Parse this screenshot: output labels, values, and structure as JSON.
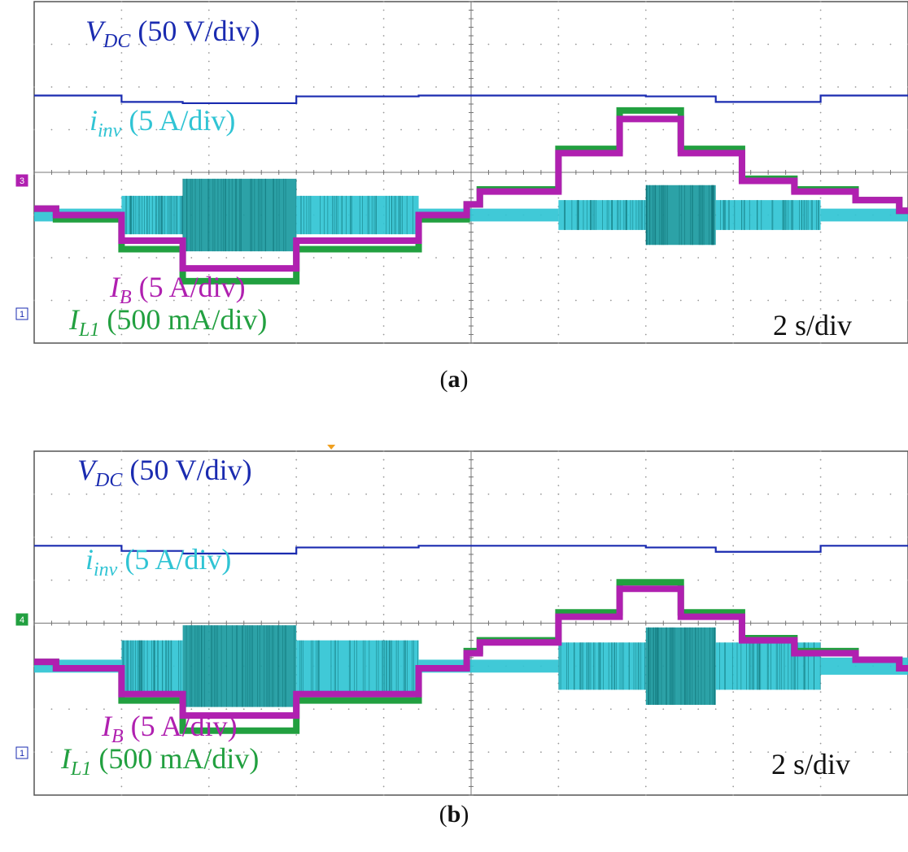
{
  "chart_data": [
    {
      "type": "line",
      "panel_label": "a",
      "time_scale": "2 s/div",
      "x_divisions": 10,
      "y_divisions": 8,
      "channel_markers": [
        "3",
        "1"
      ],
      "step_times_div": [
        0,
        0.2,
        1.0,
        1.7,
        3.0,
        4.4,
        5.0,
        6.0,
        7.0,
        7.8,
        9.0,
        10.0
      ],
      "series": [
        {
          "name": "V_DC",
          "label_main": "V",
          "label_sub": "DC",
          "label_scale": "(50 V/div)",
          "color": "#1a2bb0",
          "levels_div": [
            5.8,
            5.8,
            5.65,
            5.62,
            5.78,
            5.8,
            5.8,
            5.8,
            5.78,
            5.65,
            5.8,
            5.8
          ]
        },
        {
          "name": "i_inv",
          "label_main": "i",
          "label_sub": "inv",
          "label_scale": "(5 A/div)",
          "color": "#30c4d4",
          "amps_div": [
            0.15,
            0.15,
            0.45,
            0.85,
            0.45,
            0.15,
            0.15,
            0.35,
            0.7,
            0.35,
            0.15,
            0.15
          ]
        },
        {
          "name": "I_B",
          "label_main": "I",
          "label_sub": "B",
          "label_scale": "(5 A/div)",
          "color": "#b020b0",
          "levels_div": [
            3.15,
            3.0,
            2.4,
            1.75,
            2.4,
            3.0,
            3.25,
            3.55,
            4.45,
            5.25,
            4.45,
            3.8,
            3.55,
            3.35,
            3.1
          ]
        },
        {
          "name": "I_L1",
          "label_main": "I",
          "label_sub": "L1",
          "label_scale": "(500 mA/div)",
          "color": "#22a040",
          "levels_div": [
            3.15,
            2.9,
            2.2,
            1.45,
            2.2,
            2.9,
            3.25,
            3.6,
            4.55,
            5.45,
            4.55,
            3.85,
            3.6,
            3.35,
            3.1
          ]
        }
      ]
    },
    {
      "type": "line",
      "panel_label": "b",
      "time_scale": "2 s/div",
      "x_divisions": 10,
      "y_divisions": 8,
      "channel_markers": [
        "4",
        "1"
      ],
      "step_times_div": [
        0,
        0.2,
        1.0,
        1.7,
        3.0,
        4.4,
        5.0,
        6.0,
        7.0,
        7.8,
        9.0,
        10.0
      ],
      "series": [
        {
          "name": "V_DC",
          "label_main": "V",
          "label_sub": "DC",
          "label_scale": "(50 V/div)",
          "color": "#1a2bb0",
          "levels_div": [
            5.8,
            5.8,
            5.68,
            5.62,
            5.76,
            5.8,
            5.8,
            5.8,
            5.76,
            5.66,
            5.8,
            5.8
          ]
        },
        {
          "name": "i_inv",
          "label_main": "i",
          "label_sub": "inv",
          "label_scale": "(5 A/div)",
          "color": "#30c4d4",
          "amps_div": [
            0.15,
            0.15,
            0.6,
            0.95,
            0.6,
            0.15,
            0.15,
            0.55,
            0.9,
            0.55,
            0.2,
            0.15
          ]
        },
        {
          "name": "I_B",
          "label_main": "I",
          "label_sub": "B",
          "label_scale": "(5 A/div)",
          "color": "#b020b0",
          "levels_div": [
            3.1,
            2.95,
            2.35,
            1.85,
            2.35,
            2.95,
            3.3,
            3.55,
            4.15,
            4.8,
            4.15,
            3.6,
            3.3,
            3.15,
            2.95
          ]
        },
        {
          "name": "I_L1",
          "label_main": "I",
          "label_sub": "L1",
          "label_scale": "(500 mA/div)",
          "color": "#22a040",
          "levels_div": [
            3.1,
            2.95,
            2.2,
            1.5,
            2.2,
            2.95,
            3.35,
            3.6,
            4.25,
            4.95,
            4.25,
            3.65,
            3.35,
            3.15,
            2.95
          ]
        }
      ]
    }
  ]
}
